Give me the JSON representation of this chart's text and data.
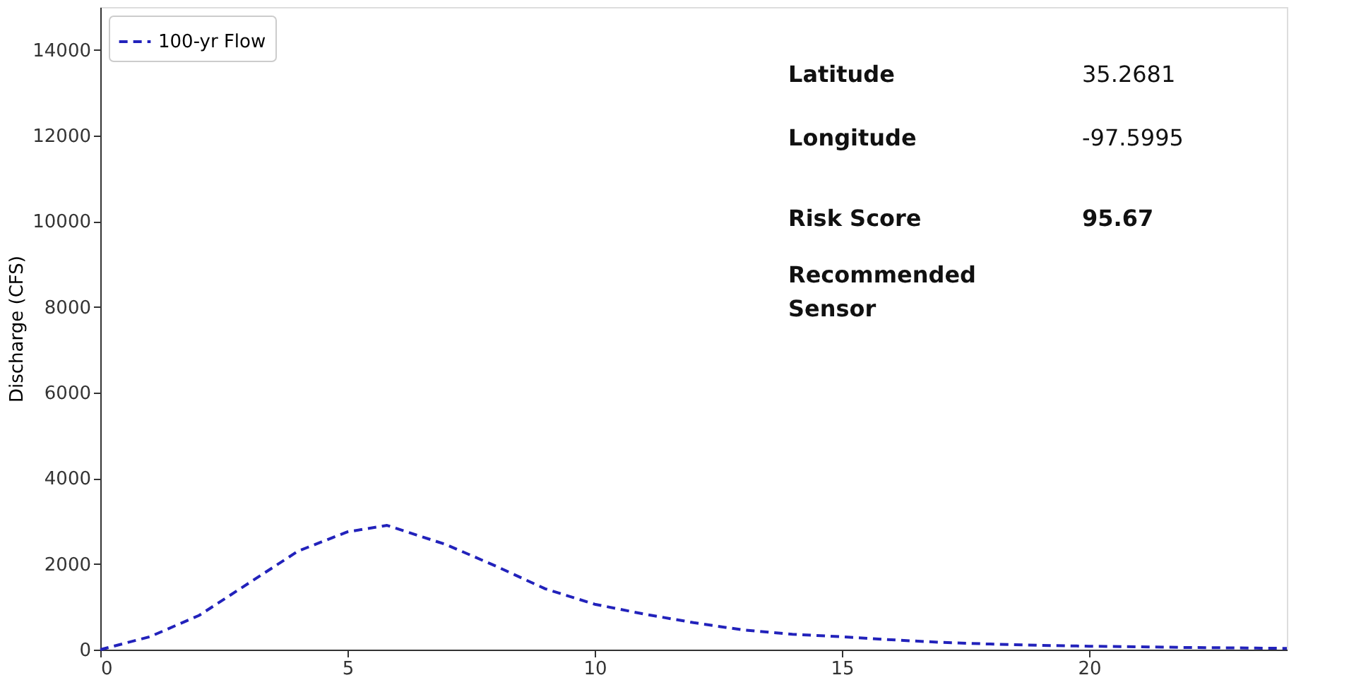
{
  "chart_data": {
    "type": "line",
    "ylabel": "Discharge (CFS)",
    "x": [
      0,
      1,
      2,
      3,
      4,
      5,
      5.8,
      7,
      8,
      9,
      10,
      11,
      12,
      13,
      14,
      15,
      16,
      17,
      18,
      19,
      20,
      22,
      24
    ],
    "series": [
      {
        "name": "100-yr Flow",
        "color": "#2222bb",
        "line_style": "dashed",
        "values": [
          0,
          300,
          800,
          1550,
          2300,
          2750,
          2900,
          2450,
          1950,
          1420,
          1060,
          830,
          630,
          460,
          360,
          300,
          230,
          170,
          130,
          100,
          80,
          50,
          30
        ]
      }
    ],
    "xlim": [
      0,
      24
    ],
    "xticks": [
      0,
      5,
      10,
      15,
      20
    ],
    "ylim": [
      0,
      15000
    ],
    "yticks": [
      0,
      2000,
      4000,
      6000,
      8000,
      10000,
      12000,
      14000
    ],
    "grid": false,
    "legend": "top left",
    "marker": "none",
    "annotations": [
      "Latitude",
      "35.2681",
      "Longitude",
      "-97.5995",
      "Risk Score",
      "95.67",
      "Recommended\nSensor"
    ]
  }
}
